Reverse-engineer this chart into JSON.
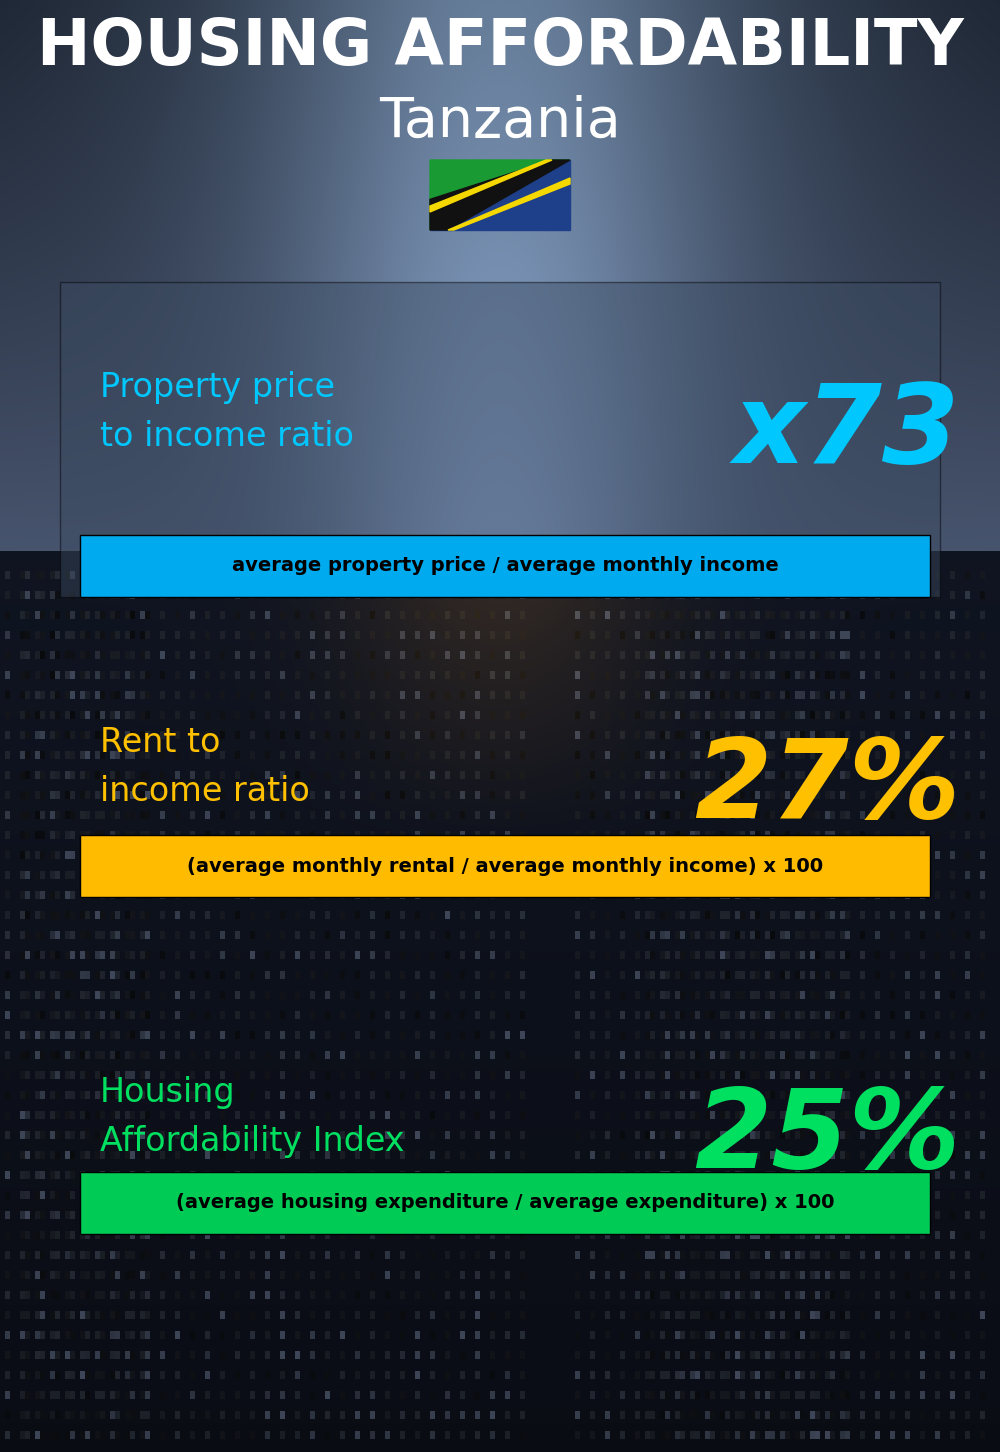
{
  "title_line1": "HOUSING AFFORDABILITY",
  "title_line2": "Tanzania",
  "bg_color": "#0a0f1a",
  "section1_label": "Property price\nto income ratio",
  "section1_value": "x73",
  "section1_label_color": "#00c8ff",
  "section1_value_color": "#00c8ff",
  "section1_formula": "average property price / average monthly income",
  "section1_formula_bg": "#00aaee",
  "section2_label": "Rent to\nincome ratio",
  "section2_value": "27%",
  "section2_label_color": "#ffc000",
  "section2_value_color": "#ffc000",
  "section2_formula": "(average monthly rental / average monthly income) x 100",
  "section2_formula_bg": "#ffbb00",
  "section3_label": "Housing\nAffordability Index",
  "section3_value": "25%",
  "section3_label_color": "#00e060",
  "section3_value_color": "#00e060",
  "section3_formula": "(average housing expenditure / average expenditure) x 100",
  "section3_formula_bg": "#00cc55",
  "flag_green": "#1a9a32",
  "flag_yellow": "#f5d800",
  "flag_black": "#111111",
  "flag_blue": "#1e3f8a",
  "title_fontsize": 46,
  "subtitle_fontsize": 40,
  "label_fontsize": 24,
  "value_fontsize": 80,
  "formula_fontsize": 14
}
